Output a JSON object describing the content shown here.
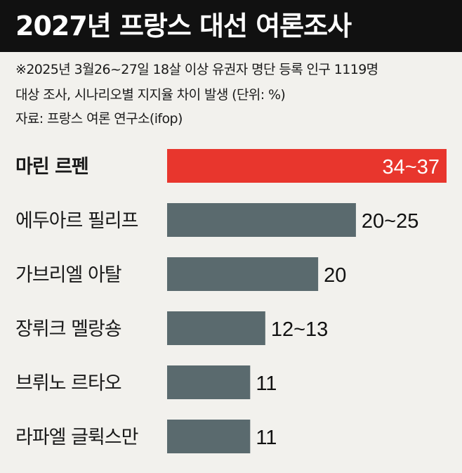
{
  "header": {
    "title": "2027년 프랑스 대선 여론조사"
  },
  "notes": [
    "※2025년 3월26~27일 18살 이상 유권자 명단 등록 인구 1119명",
    "대상 조사, 시나리오별 지지율 차이 발생 (단위: %)",
    "자료: 프랑스 여론 연구소(ifop)"
  ],
  "colors": {
    "highlight": "#e8362d",
    "bar": "#5a6a6e",
    "title_bg": "#111111",
    "background": "#f2f1ed"
  },
  "chart_data": {
    "type": "bar",
    "orientation": "horizontal",
    "unit": "%",
    "xlim": [
      0,
      37
    ],
    "grid": false,
    "legend": "none",
    "categories": [
      "마린 르펜",
      "에두아르 필리프",
      "가브리엘 아탈",
      "장뤼크 멜랑숑",
      "브뤼노 르타오",
      "라파엘 글뤽스만"
    ],
    "values": [
      37,
      25,
      20,
      13,
      11,
      11
    ],
    "value_labels": [
      "34~37",
      "20~25",
      "20",
      "12~13",
      "11",
      "11"
    ],
    "highlight_index": 0
  }
}
